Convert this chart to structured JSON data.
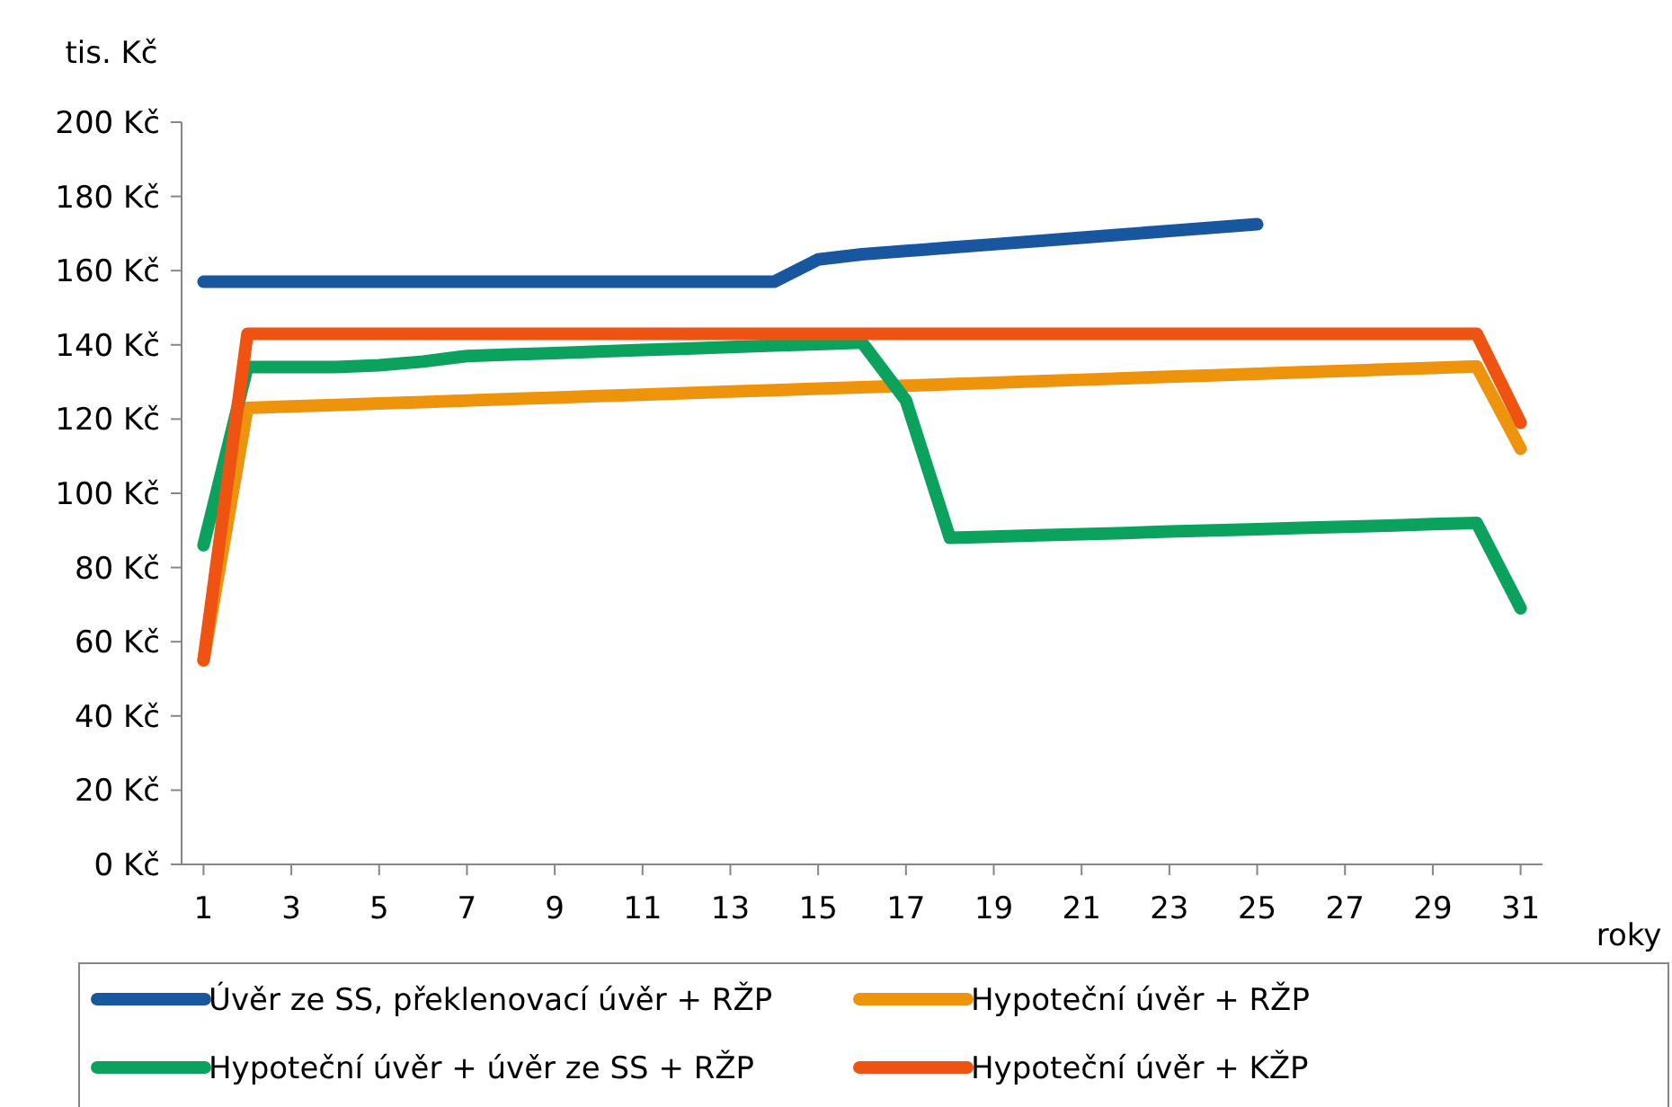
{
  "chart_data": {
    "type": "line",
    "ylabel": "tis. Kč",
    "xlabel": "roky",
    "xlim": [
      0.5,
      31.5
    ],
    "xticks": [
      1,
      3,
      5,
      7,
      9,
      11,
      13,
      15,
      17,
      19,
      21,
      23,
      25,
      27,
      29,
      31
    ],
    "ylim": [
      0,
      200
    ],
    "yticks": [
      {
        "value": 0,
        "label": "0 Kč"
      },
      {
        "value": 20,
        "label": "20 Kč"
      },
      {
        "value": 40,
        "label": "40 Kč"
      },
      {
        "value": 60,
        "label": "60 Kč"
      },
      {
        "value": 80,
        "label": "80 Kč"
      },
      {
        "value": 100,
        "label": "100 Kč"
      },
      {
        "value": 120,
        "label": "120 Kč"
      },
      {
        "value": 140,
        "label": "140 Kč"
      },
      {
        "value": 160,
        "label": "160 Kč"
      },
      {
        "value": 180,
        "label": "180 Kč"
      },
      {
        "value": 200,
        "label": "200 Kč"
      }
    ],
    "x": [
      1,
      2,
      3,
      4,
      5,
      6,
      7,
      8,
      9,
      10,
      11,
      12,
      13,
      14,
      15,
      16,
      17,
      18,
      19,
      20,
      21,
      22,
      23,
      24,
      25,
      26,
      27,
      28,
      29,
      30,
      31
    ],
    "grid": false,
    "legend": "bottom",
    "marker": "none",
    "line_style": "solid",
    "series": [
      {
        "name": "Úvěr ze SS, překlenovací úvěr + RŽP",
        "color": "#1857a0",
        "values": [
          157,
          157,
          157,
          157,
          157,
          157,
          157,
          157,
          157,
          157,
          157,
          157,
          157,
          157,
          163,
          164.4,
          165.3,
          166.2,
          167.1,
          168,
          168.9,
          169.8,
          170.7,
          171.6,
          172.5,
          null,
          null,
          null,
          null,
          null,
          null
        ]
      },
      {
        "name": "Hypoteční úvěr + RŽP",
        "color": "#ee930c",
        "values": [
          55,
          123,
          123.4,
          123.8,
          124.2,
          124.6,
          125,
          125.4,
          125.8,
          126.2,
          126.6,
          127,
          127.4,
          127.8,
          128.2,
          128.6,
          129,
          129.4,
          129.8,
          130.2,
          130.6,
          131,
          131.4,
          131.8,
          132.2,
          132.6,
          133,
          133.4,
          133.8,
          134.2,
          112
        ]
      },
      {
        "name": "Hypoteční úvěr + úvěr ze SS + RŽP",
        "color": "#0aa25d",
        "values": [
          86,
          134,
          134,
          134,
          134.5,
          135.5,
          137,
          137.4,
          137.8,
          138.2,
          138.6,
          139,
          139.4,
          139.8,
          140.2,
          140.6,
          125,
          88,
          88.3,
          88.7,
          89,
          89.3,
          89.7,
          90,
          90.3,
          90.7,
          91,
          91.3,
          91.7,
          92,
          69
        ]
      },
      {
        "name": "Hypoteční úvěr + KŽP",
        "color": "#ee5311",
        "values": [
          55,
          143,
          143,
          143,
          143,
          143,
          143,
          143,
          143,
          143,
          143,
          143,
          143,
          143,
          143,
          143,
          143,
          143,
          143,
          143,
          143,
          143,
          143,
          143,
          143,
          143,
          143,
          143,
          143,
          143,
          119
        ]
      }
    ]
  }
}
